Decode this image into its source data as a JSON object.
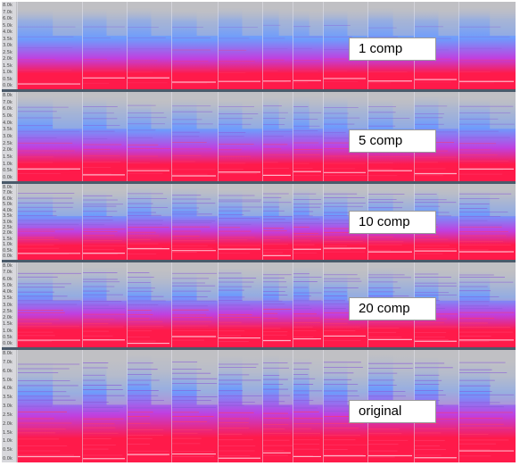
{
  "panels": [
    {
      "label": "1 comp",
      "harmonics": 0.15,
      "brightness": 0.85
    },
    {
      "label": "5 comp",
      "harmonics": 0.55,
      "brightness": 0.75
    },
    {
      "label": "10 comp",
      "harmonics": 0.75,
      "brightness": 0.7
    },
    {
      "label": "20 comp",
      "harmonics": 0.85,
      "brightness": 0.6
    },
    {
      "label": "original",
      "harmonics": 1.0,
      "brightness": 0.45
    }
  ],
  "freq_ticks": [
    "8.0k",
    "7.0k",
    "6.0k",
    "5.0k",
    "4.0k",
    "3.5k",
    "3.0k",
    "2.5k",
    "2.0k",
    "1.5k",
    "1.0k",
    "0.5k",
    "0.0k"
  ],
  "colors": {
    "low": "#ff1a4a",
    "mid": "#c040e0",
    "high": "#6a9aff",
    "bg": "#c0c0c4",
    "separator": "#4a5a6a"
  }
}
